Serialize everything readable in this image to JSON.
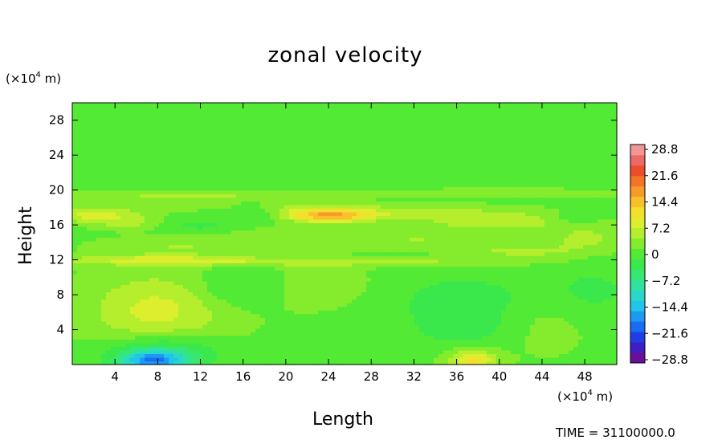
{
  "chart_data": {
    "type": "heatmap",
    "title": "zonal velocity",
    "xlabel": "Length",
    "ylabel": "Height",
    "x_unit_prefix": "(×10",
    "x_unit_exp": "4",
    "x_unit_suffix": " m)",
    "y_unit_prefix": "(×10",
    "y_unit_exp": "4",
    "y_unit_suffix": " m)",
    "xlim": [
      0,
      51
    ],
    "ylim": [
      0,
      30
    ],
    "x_ticks": [
      4,
      8,
      12,
      16,
      20,
      24,
      28,
      32,
      36,
      40,
      44,
      48
    ],
    "y_ticks": [
      4,
      8,
      12,
      16,
      20,
      24,
      28
    ],
    "grid": false,
    "colorbar": {
      "position": "right",
      "range": [
        -28.8,
        28.8
      ],
      "tick_labels": [
        "28.8",
        "21.6",
        "14.4",
        "7.2",
        "0",
        "−7.2",
        "−14.4",
        "−21.6",
        "−28.8"
      ],
      "colors": [
        "#6a0f9a",
        "#3f1fc4",
        "#1f3ee6",
        "#1a6cf2",
        "#1c9af2",
        "#22c4ea",
        "#2ad8c8",
        "#30e2a0",
        "#36e870",
        "#3ae84c",
        "#52ea34",
        "#84ec2c",
        "#b4ee2c",
        "#dcee2e",
        "#f4e02c",
        "#f8c02a",
        "#f89a28",
        "#f27424",
        "#ec4e2c",
        "#ec6a66",
        "#f09696"
      ]
    },
    "features": [
      {
        "x": 7.5,
        "y": 0.4,
        "value": -15,
        "sx": 2.2,
        "sy": 0.8
      },
      {
        "x": 8.5,
        "y": 1.5,
        "value": -8,
        "sx": 3.5,
        "sy": 1.4
      },
      {
        "x": 37.5,
        "y": 0.5,
        "value": 10,
        "sx": 1.6,
        "sy": 0.9
      },
      {
        "x": 8.0,
        "y": 6.2,
        "value": 7,
        "sx": 4.5,
        "sy": 3.0
      },
      {
        "x": 15.5,
        "y": 8.8,
        "value": -4,
        "sx": 3.0,
        "sy": 1.6
      },
      {
        "x": 37.0,
        "y": 7.5,
        "value": -4,
        "sx": 5.0,
        "sy": 2.0
      },
      {
        "x": 36.5,
        "y": 4.0,
        "value": -3,
        "sx": 3.5,
        "sy": 1.5
      },
      {
        "x": 48.5,
        "y": 8.5,
        "value": -3,
        "sx": 3.0,
        "sy": 2.0
      },
      {
        "x": 22.0,
        "y": 9.0,
        "value": 2,
        "sx": 5.0,
        "sy": 2.0
      },
      {
        "x": 44.0,
        "y": 5.5,
        "value": 2,
        "sx": 3.0,
        "sy": 3.0
      },
      {
        "x": 2.0,
        "y": 17.2,
        "value": 7,
        "sx": 3.0,
        "sy": 0.6
      },
      {
        "x": 5.0,
        "y": 16.3,
        "value": 4,
        "sx": 2.0,
        "sy": 0.5
      },
      {
        "x": 24.5,
        "y": 17.0,
        "value": 10,
        "sx": 2.5,
        "sy": 0.5
      },
      {
        "x": 22.0,
        "y": 17.5,
        "value": 5,
        "sx": 3.0,
        "sy": 0.7
      },
      {
        "x": 8.0,
        "y": 18.5,
        "value": 3,
        "sx": 4.0,
        "sy": 0.5
      },
      {
        "x": 17.5,
        "y": 17.2,
        "value": -4,
        "sx": 1.5,
        "sy": 0.6
      },
      {
        "x": 12.0,
        "y": 16.0,
        "value": -3,
        "sx": 2.0,
        "sy": 0.6
      },
      {
        "x": 30.0,
        "y": 17.5,
        "value": 5,
        "sx": 6.0,
        "sy": 0.6
      },
      {
        "x": 40.0,
        "y": 16.5,
        "value": 5,
        "sx": 5.0,
        "sy": 0.8
      },
      {
        "x": 47.0,
        "y": 16.8,
        "value": -3,
        "sx": 1.5,
        "sy": 0.5
      },
      {
        "x": 33.0,
        "y": 14.5,
        "value": 3,
        "sx": 4.0,
        "sy": 0.8
      },
      {
        "x": 22.0,
        "y": 14.5,
        "value": 3,
        "sx": 5.0,
        "sy": 0.8
      },
      {
        "x": 10.0,
        "y": 13.5,
        "value": 3,
        "sx": 5.0,
        "sy": 0.8
      },
      {
        "x": 42.0,
        "y": 13.0,
        "value": 4,
        "sx": 4.0,
        "sy": 0.6
      },
      {
        "x": 48.0,
        "y": 14.5,
        "value": 4,
        "sx": 2.5,
        "sy": 1.0
      },
      {
        "x": 26.0,
        "y": 11.8,
        "value": 5,
        "sx": 10.0,
        "sy": 0.3
      },
      {
        "x": 8.0,
        "y": 12.0,
        "value": 6,
        "sx": 7.0,
        "sy": 0.4
      },
      {
        "x": 12.0,
        "y": 19.6,
        "value": 4,
        "sx": 12.0,
        "sy": 0.3
      },
      {
        "x": 38.0,
        "y": 19.7,
        "value": 3,
        "sx": 12.0,
        "sy": 0.3
      },
      {
        "x": 14.0,
        "y": 20.1,
        "value": -2,
        "sx": 10.0,
        "sy": 0.2
      }
    ]
  },
  "time_label": "TIME = 31100000.0"
}
